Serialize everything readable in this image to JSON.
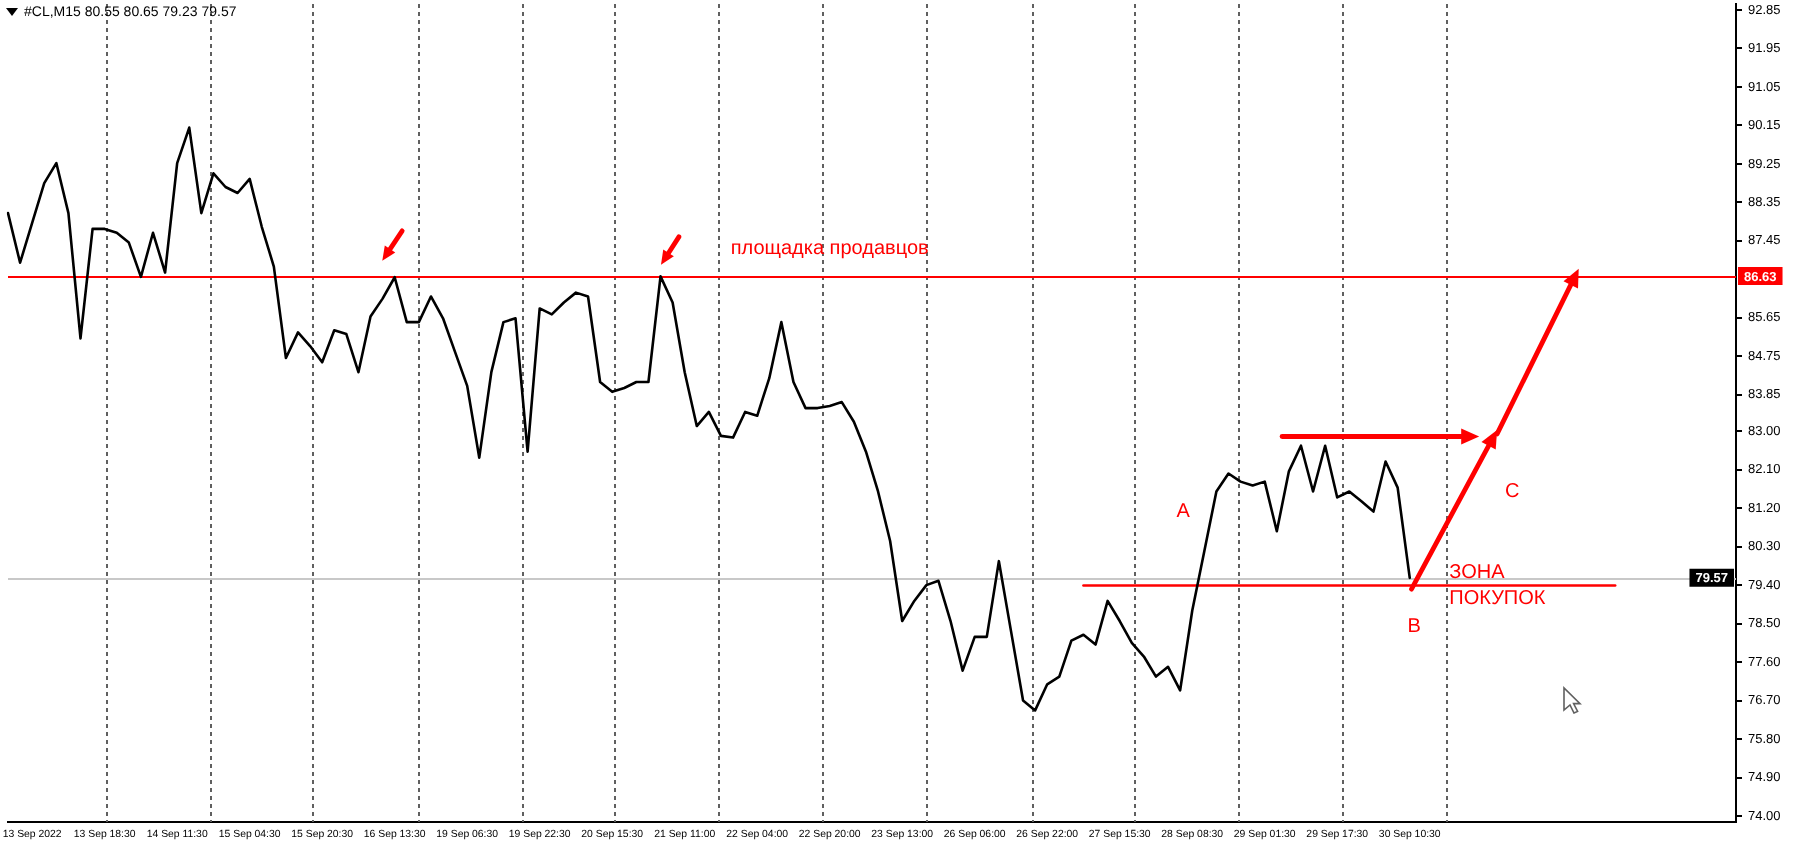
{
  "chart_data": {
    "type": "line",
    "title": "#CL,M15 80.55 80.65 79.23 79.57",
    "categories": [
      null,
      null,
      "13 Sep 2022",
      null,
      null,
      null,
      null,
      null,
      "13 Sep 18:30",
      null,
      null,
      null,
      null,
      null,
      "14 Sep 11:30",
      null,
      null,
      null,
      null,
      null,
      "15 Sep 04:30",
      null,
      null,
      null,
      null,
      null,
      "15 Sep 20:30",
      null,
      null,
      null,
      null,
      null,
      "16 Sep 13:30",
      null,
      null,
      null,
      null,
      null,
      "19 Sep 06:30",
      null,
      null,
      null,
      null,
      null,
      "19 Sep 22:30",
      null,
      null,
      null,
      null,
      null,
      "20 Sep 15:30",
      null,
      null,
      null,
      null,
      null,
      "21 Sep 11:00",
      null,
      null,
      null,
      null,
      null,
      "22 Sep 04:00",
      null,
      null,
      null,
      null,
      null,
      "22 Sep 20:00",
      null,
      null,
      null,
      null,
      null,
      "23 Sep 13:00",
      null,
      null,
      null,
      null,
      null,
      "26 Sep 06:00",
      null,
      null,
      null,
      null,
      null,
      "26 Sep 22:00",
      null,
      null,
      null,
      null,
      null,
      "27 Sep 15:30",
      null,
      null,
      null,
      null,
      null,
      "28 Sep 08:30",
      null,
      null,
      null,
      null,
      null,
      "29 Sep 01:30",
      null,
      null,
      null,
      null,
      null,
      "29 Sep 17:30",
      null,
      null,
      null,
      null,
      null,
      "30 Sep 10:30",
      null,
      null,
      null,
      null,
      null,
      null,
      null,
      null,
      null,
      null,
      null,
      null,
      null,
      null,
      null,
      null,
      null,
      null,
      null,
      null,
      null,
      null,
      null,
      null,
      null,
      null,
      null
    ],
    "series": [
      {
        "color": "#000000",
        "values": [
          88.1,
          86.94,
          87.87,
          88.8,
          89.27,
          88.1,
          85.17,
          87.73,
          87.73,
          87.64,
          87.41,
          86.61,
          87.64,
          86.71,
          89.27,
          90.1,
          88.1,
          89.03,
          88.71,
          88.57,
          88.9,
          87.78,
          86.85,
          84.71,
          85.31,
          84.99,
          84.61,
          85.36,
          85.27,
          84.38,
          85.68,
          86.1,
          86.6,
          85.55,
          85.55,
          86.15,
          85.64,
          84.85,
          84.06,
          82.38,
          84.38,
          85.55,
          85.64,
          82.52,
          85.87,
          85.73,
          86.01,
          86.24,
          86.15,
          84.15,
          83.92,
          84.01,
          84.15,
          84.15,
          86.62,
          86.01,
          84.38,
          83.12,
          83.45,
          82.89,
          82.85,
          83.45,
          83.36,
          84.24,
          85.55,
          84.15,
          83.54,
          83.54,
          83.59,
          83.68,
          83.22,
          82.52,
          81.59,
          80.43,
          78.56,
          79.03,
          79.4,
          79.5,
          78.56,
          77.4,
          78.19,
          78.19,
          79.96,
          78.33,
          76.7,
          76.47,
          77.08,
          77.26,
          78.1,
          78.24,
          78.01,
          79.03,
          78.56,
          78.05,
          77.73,
          77.26,
          77.49,
          76.94,
          78.8,
          80.19,
          81.59,
          82.01,
          81.82,
          81.73,
          81.82,
          80.66,
          82.06,
          82.66,
          81.59,
          82.66,
          81.45,
          81.59,
          81.36,
          81.12,
          82.29,
          81.68,
          79.57,
          null,
          null,
          null,
          null,
          null,
          null,
          null,
          null,
          null,
          null,
          null,
          null,
          null,
          null,
          null,
          null,
          null,
          null,
          null,
          null,
          null,
          null,
          null,
          null,
          null,
          null,
          null
        ]
      },
      {
        "color": "#ff0000",
        "values": [
          null,
          null,
          null,
          null,
          null,
          null,
          null,
          null,
          null,
          null,
          null,
          null,
          null,
          null,
          null,
          null,
          null,
          null,
          null,
          null,
          null,
          null,
          null,
          null,
          null,
          null,
          null,
          null,
          null,
          null,
          null,
          null,
          null,
          null,
          null,
          null,
          null,
          null,
          null,
          null,
          null,
          null,
          null,
          null,
          null,
          null,
          null,
          null,
          null,
          null,
          null,
          null,
          null,
          null,
          null,
          null,
          null,
          null,
          null,
          null,
          null,
          null,
          null,
          null,
          null,
          null,
          null,
          null,
          null,
          null,
          null,
          null,
          null,
          null,
          null,
          null,
          null,
          null,
          null,
          null,
          null,
          null,
          null,
          null,
          null,
          null,
          null,
          null,
          null,
          79.39,
          79.39,
          79.39,
          79.39,
          79.39,
          79.39,
          79.39,
          79.39,
          79.39,
          79.39,
          79.39,
          79.39,
          79.39,
          79.39,
          79.39,
          79.39,
          79.39,
          79.39,
          79.39,
          79.39,
          79.39,
          79.39,
          79.39,
          79.39,
          79.39,
          79.39,
          79.39,
          79.39,
          79.39,
          79.39,
          79.39,
          79.39,
          79.39,
          79.39,
          79.39,
          79.39,
          79.39,
          79.39,
          79.39,
          79.39,
          79.39,
          79.39,
          79.39,
          79.39,
          79.39,
          null,
          null,
          null,
          null,
          null,
          null,
          null,
          null,
          null,
          null
        ]
      }
    ],
    "ylim": [
      73.86,
      92.99
    ],
    "yticks": [
      {
        "value": 74,
        "label": "74.00"
      },
      {
        "value": 74.9,
        "label": "74.90"
      },
      {
        "value": 75.8,
        "label": "75.80"
      },
      {
        "value": 76.7,
        "label": "76.70"
      },
      {
        "value": 77.6,
        "label": "77.60"
      },
      {
        "value": 78.5,
        "label": "78.50"
      },
      {
        "value": 79.4,
        "label": "79.40"
      },
      {
        "value": 80.3,
        "label": "80.30"
      },
      {
        "value": 81.2,
        "label": "81.20"
      },
      {
        "value": 82.1,
        "label": "82.10"
      },
      {
        "value": 83,
        "label": "83.00"
      },
      83.85,
      84.75,
      85.65,
      87.45,
      88.35,
      89.25,
      90.15,
      91.05,
      91.95,
      92.85
    ],
    "ref_lines": [
      {
        "axis": "y",
        "value": 86.63,
        "label": "86.63",
        "color": "#ff0000"
      },
      {
        "axis": "y",
        "value": 79.57,
        "label": "79.57",
        "color": "#c8c8c8"
      }
    ],
    "annotations": [
      "площадка продавцов",
      "A",
      "B",
      "C",
      "ЗОНА\nПОКУПОК"
    ]
  }
}
